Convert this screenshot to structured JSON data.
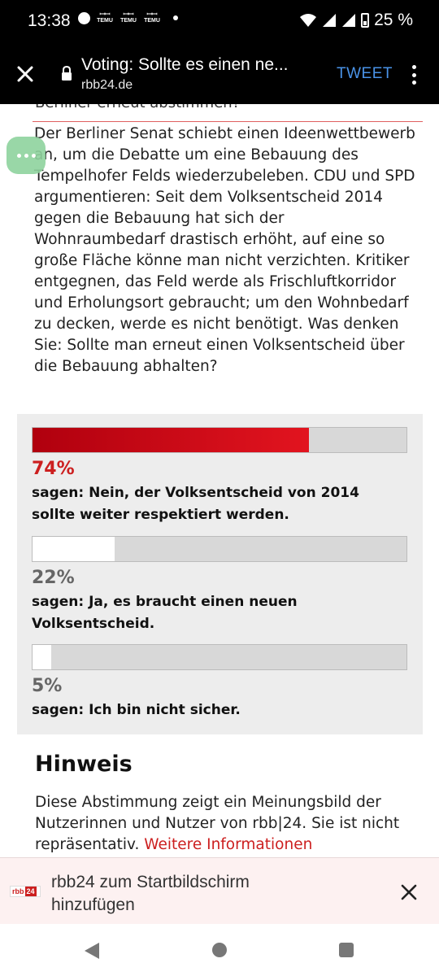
{
  "status_bar": {
    "time": "13:38",
    "notif_labels": [
      "TEMU",
      "TEMU",
      "TEMU"
    ],
    "battery": "25 %"
  },
  "toolbar": {
    "title": "Voting: Sollte es einen ne...",
    "url": "rbb24.de",
    "tweet_label": "TWEET"
  },
  "article": {
    "clipped_line": "Berliner erneut abstimmen?",
    "text": "Der Berliner Senat schiebt einen Ideenwettbewerb an, um die Debatte um eine Bebauung des Tempelhofer Felds wiederzubeleben. CDU und SPD argumentieren: Seit dem Volksentscheid 2014 gegen die Bebauung hat sich der Wohnraumbedarf drastisch erhöht, auf eine so große Fläche könne man nicht verzichten. Kritiker entgegnen, das Feld werde als Frischluftkorridor und Erholungsort gebraucht; um den Wohnbedarf zu decken, werde es nicht benötigt. Was denken Sie: Sollte man erneut einen Volksentscheid über die Bebauung abhalten?"
  },
  "poll": {
    "options": [
      {
        "percent": 74,
        "percent_label": "74%",
        "answer": "sagen: Nein, der Volksentscheid von 2014 sollte weiter respektiert werden.",
        "leading": true
      },
      {
        "percent": 22,
        "percent_label": "22%",
        "answer": "sagen: Ja, es braucht einen neuen Volksentscheid.",
        "leading": false
      },
      {
        "percent": 5,
        "percent_label": "5%",
        "answer": "sagen: Ich bin nicht sicher.",
        "leading": false
      }
    ]
  },
  "hinweis": {
    "title": "Hinweis",
    "text": "Diese Abstimmung zeigt ein Meinungsbild der Nutzerinnen und Nutzer von rbb|24. Sie ist nicht repräsentativ. ",
    "link": "Weitere Informationen"
  },
  "banner": {
    "logo_left": "rbb",
    "logo_right": "24",
    "text": "rbb24 zum Startbildschirm hinzufügen"
  },
  "colors": {
    "accent_red": "#cc1f1f",
    "tweet_blue": "#4a93e8",
    "fab_green": "#8fd39e"
  },
  "icons": [
    "close-icon",
    "lock-icon",
    "more-vert-icon",
    "wifi-icon",
    "signal-icon",
    "battery-icon",
    "back-icon",
    "home-icon",
    "recents-icon"
  ]
}
